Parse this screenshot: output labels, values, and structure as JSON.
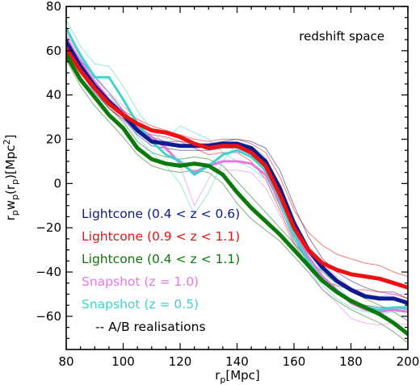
{
  "chart_data": {
    "type": "line",
    "annotation": "redshift space",
    "xlabel_main": "r",
    "xlabel_sub": "p",
    "xlabel_unit": "[Mpc]",
    "ylabel_parts": [
      "r",
      "p",
      "w",
      "p",
      "(r",
      "p",
      ")[Mpc",
      "2",
      "]"
    ],
    "xlim": [
      80,
      200
    ],
    "ylim": [
      -75,
      80
    ],
    "x_ticks": [
      80,
      100,
      120,
      140,
      160,
      180,
      200
    ],
    "y_ticks": [
      -60,
      -40,
      -20,
      0,
      20,
      40,
      60,
      80
    ],
    "x_tick_labels": [
      "80",
      "100",
      "120",
      "140",
      "160",
      "180",
      "200"
    ],
    "y_tick_labels": [
      "−60",
      "−40",
      "−20",
      "0",
      "20",
      "40",
      "60",
      "80"
    ],
    "legend": [
      {
        "label": "Lightcone (0.4 < z < 0.6)",
        "color": "#0d1b8f"
      },
      {
        "label": "Lightcone (0.9 < z < 1.1)",
        "color": "#ee1111"
      },
      {
        "label": "Lightcone (0.4 < z < 1.1)",
        "color": "#0a7a0a"
      },
      {
        "label": "Snapshot (z = 1.0)",
        "color": "#e27ae0"
      },
      {
        "label": "Snapshot (z = 0.5)",
        "color": "#3fd4cc"
      },
      {
        "label": "-- A/B realisations",
        "color": "#000000"
      }
    ],
    "series": [
      {
        "key": "lc_04_06",
        "color": "#0d1b8f",
        "width": 5,
        "x": [
          80,
          85,
          90,
          95,
          100,
          105,
          110,
          115,
          120,
          125,
          130,
          135,
          140,
          145,
          150,
          155,
          160,
          165,
          170,
          175,
          180,
          185,
          190,
          195,
          200
        ],
        "y": [
          64,
          53,
          44,
          37,
          31,
          24,
          19,
          18,
          17,
          17,
          17,
          18,
          18,
          16,
          10,
          -2,
          -18,
          -30,
          -38,
          -44,
          -48,
          -51,
          -52,
          -52,
          -54
        ]
      },
      {
        "key": "lc_09_11",
        "color": "#ee1111",
        "width": 5,
        "x": [
          80,
          85,
          90,
          95,
          100,
          105,
          110,
          115,
          120,
          125,
          130,
          135,
          140,
          145,
          150,
          155,
          160,
          165,
          170,
          175,
          180,
          185,
          190,
          195,
          200
        ],
        "y": [
          61,
          51,
          43,
          36,
          31,
          27,
          24,
          23,
          21,
          18,
          16,
          17,
          17,
          14,
          8,
          -5,
          -20,
          -30,
          -36,
          -39,
          -41,
          -42,
          -43,
          -45,
          -47
        ]
      },
      {
        "key": "lc_04_11",
        "color": "#0a7a0a",
        "width": 5,
        "x": [
          80,
          85,
          90,
          95,
          100,
          105,
          110,
          115,
          120,
          125,
          130,
          135,
          140,
          145,
          150,
          155,
          160,
          165,
          170,
          175,
          180,
          185,
          190,
          195,
          200
        ],
        "y": [
          58,
          47,
          39,
          31,
          25,
          16,
          11,
          9,
          8,
          9,
          8,
          4,
          -4,
          -11,
          -17,
          -23,
          -30,
          -37,
          -44,
          -49,
          -53,
          -56,
          -59,
          -63,
          -68
        ]
      },
      {
        "key": "snap_z10",
        "color": "#e27ae0",
        "width": 3,
        "x": [
          80,
          85,
          90,
          95,
          100,
          105,
          110,
          115,
          120,
          125,
          130,
          135,
          140,
          145,
          150,
          155,
          160,
          165,
          170,
          175,
          180,
          185,
          190,
          195,
          200
        ],
        "y": [
          66,
          55,
          46,
          38,
          32,
          26,
          21,
          16,
          9,
          5,
          8,
          10,
          10,
          9,
          4,
          -8,
          -22,
          -33,
          -42,
          -48,
          -54,
          -57,
          -58,
          -57,
          -58
        ]
      },
      {
        "key": "snap_z05",
        "color": "#3fd4cc",
        "width": 3,
        "x": [
          80,
          85,
          90,
          95,
          100,
          105,
          110,
          115,
          120,
          125,
          130,
          135,
          140,
          145,
          150,
          155,
          160,
          165,
          170,
          175,
          180,
          185,
          190,
          195,
          200
        ],
        "y": [
          70,
          58,
          48,
          48,
          38,
          27,
          19,
          13,
          10,
          4,
          8,
          13,
          15,
          12,
          6,
          -7,
          -23,
          -35,
          -44,
          -49,
          -53,
          -56,
          -57,
          -56,
          -56
        ]
      },
      {
        "key": "real_lc04_a",
        "color": "#0d1b8f",
        "width": 1,
        "x": [
          80,
          85,
          90,
          95,
          100,
          105,
          110,
          115,
          120,
          125,
          130,
          135,
          140,
          145,
          150,
          155,
          160,
          165,
          170,
          175,
          180,
          185,
          190,
          195,
          200
        ],
        "y": [
          66,
          56,
          48,
          41,
          33,
          26,
          21,
          19,
          19,
          18,
          18,
          19,
          20,
          19,
          16,
          6,
          -10,
          -24,
          -34,
          -40,
          -44,
          -47,
          -49,
          -49,
          -52
        ]
      },
      {
        "key": "real_lc04_b",
        "color": "#0d1b8f",
        "width": 1,
        "x": [
          80,
          85,
          90,
          95,
          100,
          105,
          110,
          115,
          120,
          125,
          130,
          135,
          140,
          145,
          150,
          155,
          160,
          165,
          170,
          175,
          180,
          185,
          190,
          195,
          200
        ],
        "y": [
          62,
          50,
          41,
          34,
          29,
          22,
          17,
          16,
          15,
          15,
          15,
          16,
          16,
          13,
          5,
          -10,
          -25,
          -36,
          -43,
          -49,
          -53,
          -55,
          -56,
          -56,
          -57
        ]
      },
      {
        "key": "real_lc09_a",
        "color": "#ee1111",
        "width": 1,
        "x": [
          80,
          85,
          90,
          95,
          100,
          105,
          110,
          115,
          120,
          125,
          130,
          135,
          140,
          145,
          150,
          155,
          160,
          165,
          170,
          175,
          180,
          185,
          190,
          195,
          200
        ],
        "y": [
          60,
          50,
          44,
          38,
          33,
          29,
          26,
          24,
          22,
          20,
          19,
          20,
          20,
          18,
          14,
          3,
          -12,
          -22,
          -28,
          -32,
          -34,
          -36,
          -37,
          -40,
          -42
        ]
      },
      {
        "key": "real_lc09_b",
        "color": "#ee1111",
        "width": 1,
        "x": [
          80,
          85,
          90,
          95,
          100,
          105,
          110,
          115,
          120,
          125,
          130,
          135,
          140,
          145,
          150,
          155,
          160,
          165,
          170,
          175,
          180,
          185,
          190,
          195,
          200
        ],
        "y": [
          62,
          52,
          42,
          34,
          29,
          25,
          22,
          21,
          19,
          16,
          13,
          14,
          14,
          10,
          2,
          -12,
          -27,
          -37,
          -44,
          -46,
          -48,
          -48,
          -49,
          -50,
          -52
        ]
      },
      {
        "key": "real_lc0411_a",
        "color": "#0a7a0a",
        "width": 1,
        "x": [
          80,
          85,
          90,
          95,
          100,
          105,
          110,
          115,
          120,
          125,
          130,
          135,
          140,
          145,
          150,
          155,
          160,
          165,
          170,
          175,
          180,
          185,
          190,
          195,
          200
        ],
        "y": [
          60,
          50,
          42,
          34,
          28,
          19,
          14,
          12,
          11,
          12,
          11,
          8,
          1,
          -6,
          -13,
          -20,
          -27,
          -34,
          -40,
          -45,
          -49,
          -52,
          -55,
          -58,
          -62
        ]
      },
      {
        "key": "real_lc0411_b",
        "color": "#0a7a0a",
        "width": 1,
        "x": [
          80,
          85,
          90,
          95,
          100,
          105,
          110,
          115,
          120,
          125,
          130,
          135,
          140,
          145,
          150,
          155,
          160,
          165,
          170,
          175,
          180,
          185,
          190,
          195,
          200
        ],
        "y": [
          56,
          44,
          35,
          28,
          21,
          13,
          8,
          6,
          5,
          6,
          5,
          0,
          -9,
          -16,
          -21,
          -26,
          -33,
          -40,
          -48,
          -53,
          -57,
          -60,
          -63,
          -67,
          -72
        ]
      },
      {
        "key": "real_snap10_a",
        "color": "#e27ae0",
        "width": 1,
        "x": [
          80,
          85,
          90,
          95,
          100,
          105,
          110,
          115,
          120,
          125,
          130,
          135,
          140,
          145,
          150,
          155,
          160,
          165,
          170,
          175,
          180,
          185,
          190,
          195,
          200
        ],
        "y": [
          68,
          57,
          49,
          41,
          35,
          29,
          24,
          17,
          8,
          -10,
          2,
          14,
          14,
          13,
          10,
          -2,
          -16,
          -28,
          -36,
          -42,
          -47,
          -50,
          -51,
          -50,
          -50
        ]
      },
      {
        "key": "real_snap10_b",
        "color": "#e27ae0",
        "width": 1,
        "x": [
          80,
          85,
          90,
          95,
          100,
          105,
          110,
          115,
          120,
          125,
          130,
          135,
          140,
          145,
          150,
          155,
          160,
          165,
          170,
          175,
          180,
          185,
          190,
          195,
          200
        ],
        "y": [
          64,
          53,
          43,
          35,
          29,
          23,
          18,
          15,
          10,
          8,
          8,
          6,
          6,
          5,
          -2,
          -14,
          -28,
          -38,
          -48,
          -54,
          -61,
          -63,
          -64,
          -63,
          -64
        ]
      },
      {
        "key": "real_snap05_a",
        "color": "#3fd4cc",
        "width": 1,
        "x": [
          80,
          85,
          90,
          95,
          100,
          105,
          110,
          115,
          120,
          125,
          130,
          135,
          140,
          145,
          150,
          155,
          160,
          165,
          170,
          175,
          180,
          185,
          190,
          195,
          200
        ],
        "y": [
          74,
          62,
          54,
          53,
          44,
          33,
          24,
          20,
          26,
          23,
          20,
          14,
          10,
          7,
          2,
          -10,
          -26,
          -38,
          -46,
          -52,
          -56,
          -58,
          -59,
          -58,
          -58
        ]
      },
      {
        "key": "real_snap05_b",
        "color": "#3fd4cc",
        "width": 1,
        "x": [
          80,
          85,
          90,
          95,
          100,
          105,
          110,
          115,
          120,
          125,
          130,
          135,
          140,
          145,
          150,
          155,
          160,
          165,
          170,
          175,
          180,
          185,
          190,
          195,
          200
        ],
        "y": [
          66,
          54,
          42,
          40,
          32,
          21,
          14,
          8,
          0,
          -14,
          -4,
          10,
          18,
          17,
          12,
          -2,
          -18,
          -30,
          -40,
          -46,
          -53,
          -57,
          -58,
          -57,
          -56
        ]
      }
    ]
  }
}
